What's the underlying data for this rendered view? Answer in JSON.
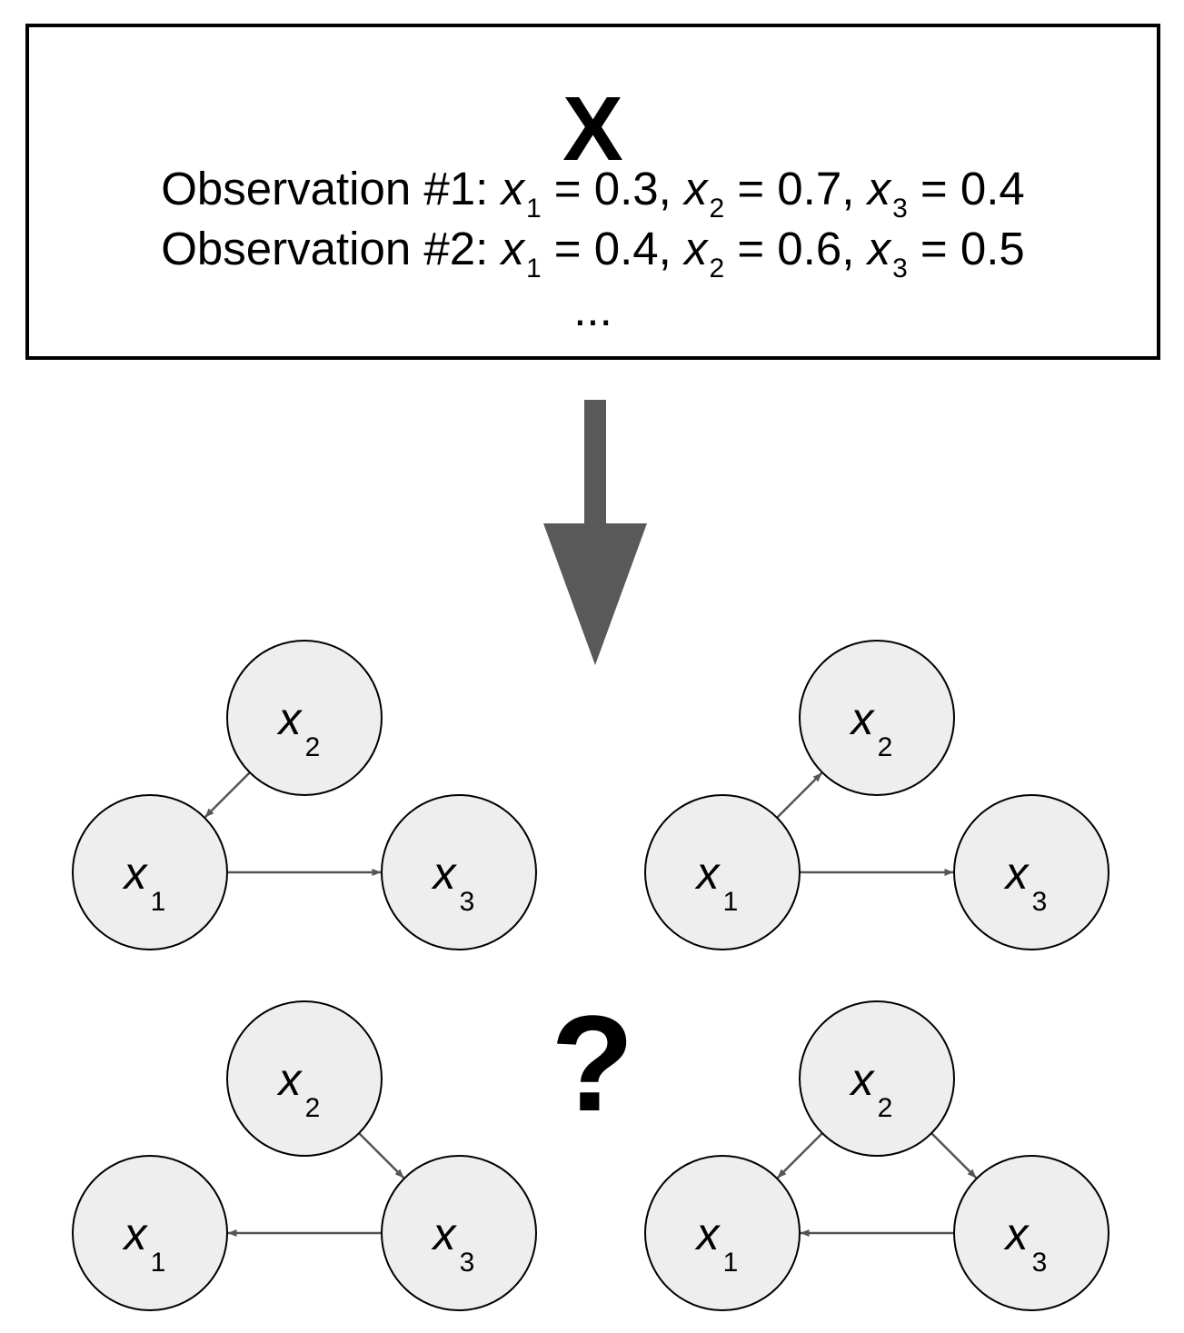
{
  "header_box": {
    "title": "X",
    "observations": [
      {
        "label": "Observation #1:",
        "values": [
          {
            "var": "x",
            "sub": "1",
            "rest": "= 0.3,"
          },
          {
            "var": "x",
            "sub": "2",
            "rest": "= 0.7,"
          },
          {
            "var": "x",
            "sub": "3",
            "rest": "= 0.4"
          }
        ]
      },
      {
        "label": "Observation #2:",
        "values": [
          {
            "var": "x",
            "sub": "1",
            "rest": "= 0.4,"
          },
          {
            "var": "x",
            "sub": "2",
            "rest": "= 0.6,"
          },
          {
            "var": "x",
            "sub": "3",
            "rest": "= 0.5"
          }
        ]
      }
    ],
    "ellipsis": "..."
  },
  "question_mark": "?",
  "node_labels": {
    "x1": {
      "var": "x",
      "sub": "1"
    },
    "x2": {
      "var": "x",
      "sub": "2"
    },
    "x3": {
      "var": "x",
      "sub": "3"
    }
  },
  "graphs": [
    {
      "name": "graph-top-left",
      "edges": [
        [
          "x2",
          "x1"
        ],
        [
          "x1",
          "x3"
        ]
      ]
    },
    {
      "name": "graph-top-right",
      "edges": [
        [
          "x1",
          "x2"
        ],
        [
          "x1",
          "x3"
        ]
      ]
    },
    {
      "name": "graph-bottom-left",
      "edges": [
        [
          "x2",
          "x3"
        ],
        [
          "x3",
          "x1"
        ]
      ]
    },
    {
      "name": "graph-bottom-right",
      "edges": [
        [
          "x2",
          "x1"
        ],
        [
          "x2",
          "x3"
        ],
        [
          "x3",
          "x1"
        ]
      ]
    }
  ],
  "colors": {
    "node_fill": "#eeeeee",
    "node_stroke": "#000000",
    "edge": "#555555",
    "big_arrow": "#595959"
  }
}
